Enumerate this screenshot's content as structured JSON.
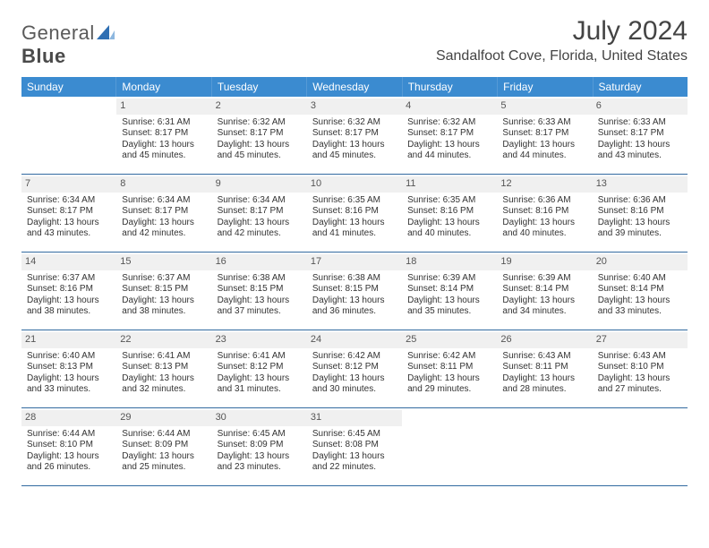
{
  "logo": {
    "text_a": "General",
    "text_b": "Blue"
  },
  "header": {
    "title": "July 2024",
    "location": "Sandalfoot Cove, Florida, United States"
  },
  "colors": {
    "header_bg": "#3b8bd0",
    "header_text": "#ffffff",
    "row_border": "#326aa0",
    "daynum_bg": "#f0f0f0",
    "daynum_text": "#555555",
    "body_text": "#333333"
  },
  "day_names": [
    "Sunday",
    "Monday",
    "Tuesday",
    "Wednesday",
    "Thursday",
    "Friday",
    "Saturday"
  ],
  "weeks": [
    [
      null,
      {
        "n": "1",
        "sr": "Sunrise: 6:31 AM",
        "ss": "Sunset: 8:17 PM",
        "d1": "Daylight: 13 hours",
        "d2": "and 45 minutes."
      },
      {
        "n": "2",
        "sr": "Sunrise: 6:32 AM",
        "ss": "Sunset: 8:17 PM",
        "d1": "Daylight: 13 hours",
        "d2": "and 45 minutes."
      },
      {
        "n": "3",
        "sr": "Sunrise: 6:32 AM",
        "ss": "Sunset: 8:17 PM",
        "d1": "Daylight: 13 hours",
        "d2": "and 45 minutes."
      },
      {
        "n": "4",
        "sr": "Sunrise: 6:32 AM",
        "ss": "Sunset: 8:17 PM",
        "d1": "Daylight: 13 hours",
        "d2": "and 44 minutes."
      },
      {
        "n": "5",
        "sr": "Sunrise: 6:33 AM",
        "ss": "Sunset: 8:17 PM",
        "d1": "Daylight: 13 hours",
        "d2": "and 44 minutes."
      },
      {
        "n": "6",
        "sr": "Sunrise: 6:33 AM",
        "ss": "Sunset: 8:17 PM",
        "d1": "Daylight: 13 hours",
        "d2": "and 43 minutes."
      }
    ],
    [
      {
        "n": "7",
        "sr": "Sunrise: 6:34 AM",
        "ss": "Sunset: 8:17 PM",
        "d1": "Daylight: 13 hours",
        "d2": "and 43 minutes."
      },
      {
        "n": "8",
        "sr": "Sunrise: 6:34 AM",
        "ss": "Sunset: 8:17 PM",
        "d1": "Daylight: 13 hours",
        "d2": "and 42 minutes."
      },
      {
        "n": "9",
        "sr": "Sunrise: 6:34 AM",
        "ss": "Sunset: 8:17 PM",
        "d1": "Daylight: 13 hours",
        "d2": "and 42 minutes."
      },
      {
        "n": "10",
        "sr": "Sunrise: 6:35 AM",
        "ss": "Sunset: 8:16 PM",
        "d1": "Daylight: 13 hours",
        "d2": "and 41 minutes."
      },
      {
        "n": "11",
        "sr": "Sunrise: 6:35 AM",
        "ss": "Sunset: 8:16 PM",
        "d1": "Daylight: 13 hours",
        "d2": "and 40 minutes."
      },
      {
        "n": "12",
        "sr": "Sunrise: 6:36 AM",
        "ss": "Sunset: 8:16 PM",
        "d1": "Daylight: 13 hours",
        "d2": "and 40 minutes."
      },
      {
        "n": "13",
        "sr": "Sunrise: 6:36 AM",
        "ss": "Sunset: 8:16 PM",
        "d1": "Daylight: 13 hours",
        "d2": "and 39 minutes."
      }
    ],
    [
      {
        "n": "14",
        "sr": "Sunrise: 6:37 AM",
        "ss": "Sunset: 8:16 PM",
        "d1": "Daylight: 13 hours",
        "d2": "and 38 minutes."
      },
      {
        "n": "15",
        "sr": "Sunrise: 6:37 AM",
        "ss": "Sunset: 8:15 PM",
        "d1": "Daylight: 13 hours",
        "d2": "and 38 minutes."
      },
      {
        "n": "16",
        "sr": "Sunrise: 6:38 AM",
        "ss": "Sunset: 8:15 PM",
        "d1": "Daylight: 13 hours",
        "d2": "and 37 minutes."
      },
      {
        "n": "17",
        "sr": "Sunrise: 6:38 AM",
        "ss": "Sunset: 8:15 PM",
        "d1": "Daylight: 13 hours",
        "d2": "and 36 minutes."
      },
      {
        "n": "18",
        "sr": "Sunrise: 6:39 AM",
        "ss": "Sunset: 8:14 PM",
        "d1": "Daylight: 13 hours",
        "d2": "and 35 minutes."
      },
      {
        "n": "19",
        "sr": "Sunrise: 6:39 AM",
        "ss": "Sunset: 8:14 PM",
        "d1": "Daylight: 13 hours",
        "d2": "and 34 minutes."
      },
      {
        "n": "20",
        "sr": "Sunrise: 6:40 AM",
        "ss": "Sunset: 8:14 PM",
        "d1": "Daylight: 13 hours",
        "d2": "and 33 minutes."
      }
    ],
    [
      {
        "n": "21",
        "sr": "Sunrise: 6:40 AM",
        "ss": "Sunset: 8:13 PM",
        "d1": "Daylight: 13 hours",
        "d2": "and 33 minutes."
      },
      {
        "n": "22",
        "sr": "Sunrise: 6:41 AM",
        "ss": "Sunset: 8:13 PM",
        "d1": "Daylight: 13 hours",
        "d2": "and 32 minutes."
      },
      {
        "n": "23",
        "sr": "Sunrise: 6:41 AM",
        "ss": "Sunset: 8:12 PM",
        "d1": "Daylight: 13 hours",
        "d2": "and 31 minutes."
      },
      {
        "n": "24",
        "sr": "Sunrise: 6:42 AM",
        "ss": "Sunset: 8:12 PM",
        "d1": "Daylight: 13 hours",
        "d2": "and 30 minutes."
      },
      {
        "n": "25",
        "sr": "Sunrise: 6:42 AM",
        "ss": "Sunset: 8:11 PM",
        "d1": "Daylight: 13 hours",
        "d2": "and 29 minutes."
      },
      {
        "n": "26",
        "sr": "Sunrise: 6:43 AM",
        "ss": "Sunset: 8:11 PM",
        "d1": "Daylight: 13 hours",
        "d2": "and 28 minutes."
      },
      {
        "n": "27",
        "sr": "Sunrise: 6:43 AM",
        "ss": "Sunset: 8:10 PM",
        "d1": "Daylight: 13 hours",
        "d2": "and 27 minutes."
      }
    ],
    [
      {
        "n": "28",
        "sr": "Sunrise: 6:44 AM",
        "ss": "Sunset: 8:10 PM",
        "d1": "Daylight: 13 hours",
        "d2": "and 26 minutes."
      },
      {
        "n": "29",
        "sr": "Sunrise: 6:44 AM",
        "ss": "Sunset: 8:09 PM",
        "d1": "Daylight: 13 hours",
        "d2": "and 25 minutes."
      },
      {
        "n": "30",
        "sr": "Sunrise: 6:45 AM",
        "ss": "Sunset: 8:09 PM",
        "d1": "Daylight: 13 hours",
        "d2": "and 23 minutes."
      },
      {
        "n": "31",
        "sr": "Sunrise: 6:45 AM",
        "ss": "Sunset: 8:08 PM",
        "d1": "Daylight: 13 hours",
        "d2": "and 22 minutes."
      },
      null,
      null,
      null
    ]
  ]
}
